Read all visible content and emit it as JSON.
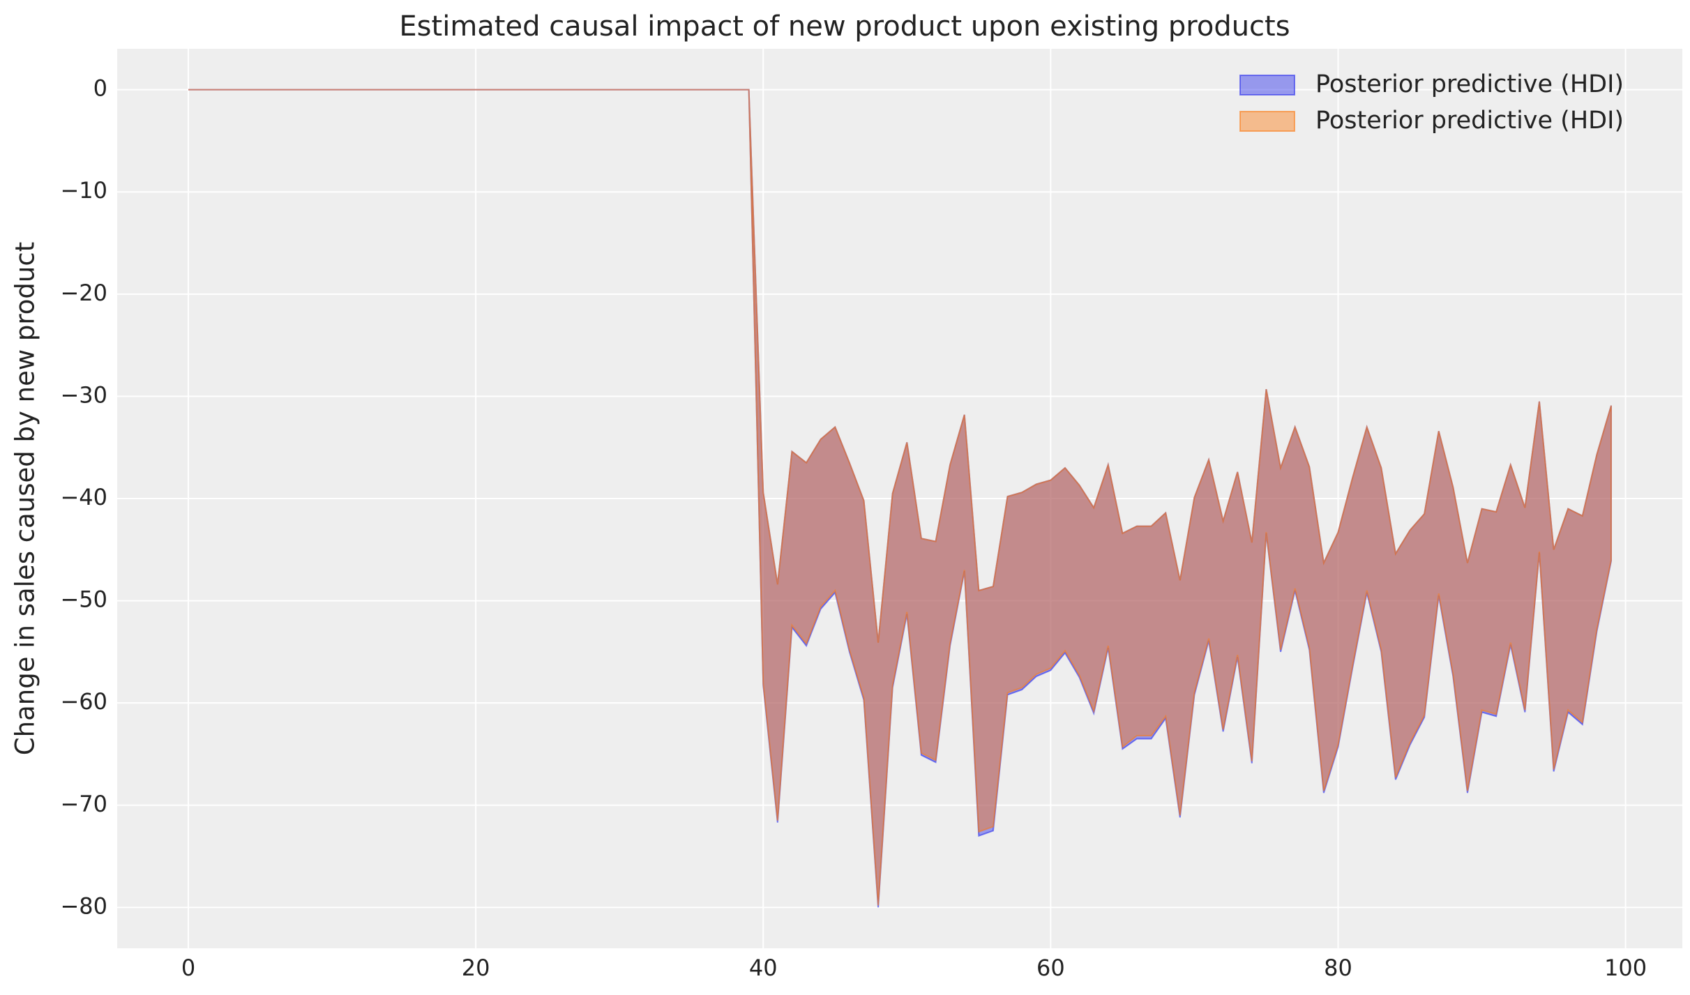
{
  "chart_data": {
    "type": "fill_between",
    "title": "Estimated causal impact of new product upon existing products",
    "y_label": "Change in sales caused by new product",
    "x": [
      0,
      1,
      2,
      3,
      4,
      5,
      6,
      7,
      8,
      9,
      10,
      11,
      12,
      13,
      14,
      15,
      16,
      17,
      18,
      19,
      20,
      21,
      22,
      23,
      24,
      25,
      26,
      27,
      28,
      29,
      30,
      31,
      32,
      33,
      34,
      35,
      36,
      37,
      38,
      39,
      40,
      41,
      42,
      43,
      44,
      45,
      46,
      47,
      48,
      49,
      50,
      51,
      52,
      53,
      54,
      55,
      56,
      57,
      58,
      59,
      60,
      61,
      62,
      63,
      64,
      65,
      66,
      67,
      68,
      69,
      70,
      71,
      72,
      73,
      74,
      75,
      76,
      77,
      78,
      79,
      80,
      81,
      82,
      83,
      84,
      85,
      86,
      87,
      88,
      89,
      90,
      91,
      92,
      93,
      94,
      95,
      96,
      97,
      98,
      99
    ],
    "series": [
      {
        "name": "Posterior predictive (HDI)",
        "color": "#2a2eec",
        "upper": [
          0,
          0,
          0,
          0,
          0,
          0,
          0,
          0,
          0,
          0,
          0,
          0,
          0,
          0,
          0,
          0,
          0,
          0,
          0,
          0,
          0,
          0,
          0,
          0,
          0,
          0,
          0,
          0,
          0,
          0,
          0,
          0,
          0,
          0,
          0,
          0,
          0,
          0,
          0,
          0,
          -39.4,
          -48.4,
          -35.4,
          -36.5,
          -34.2,
          -33.0,
          -36.5,
          -40.2,
          -54.1,
          -39.5,
          -34.5,
          -43.9,
          -44.2,
          -36.7,
          -31.8,
          -49.0,
          -48.6,
          -39.8,
          -39.4,
          -38.6,
          -38.2,
          -37.0,
          -38.7,
          -40.9,
          -36.7,
          -43.4,
          -42.7,
          -42.7,
          -41.4,
          -48.0,
          -39.9,
          -36.2,
          -42.2,
          -37.4,
          -44.3,
          -29.3,
          -37.0,
          -33.0,
          -36.9,
          -46.3,
          -43.3,
          -38.0,
          -33.0,
          -37.0,
          -45.4,
          -43.1,
          -41.5,
          -33.4,
          -38.9,
          -46.3,
          -41.0,
          -41.3,
          -36.7,
          -40.9,
          -30.5,
          -45.0,
          -41.0,
          -41.7,
          -35.7,
          -30.9
        ],
        "lower": [
          0,
          0,
          0,
          0,
          0,
          0,
          0,
          0,
          0,
          0,
          0,
          0,
          0,
          0,
          0,
          0,
          0,
          0,
          0,
          0,
          0,
          0,
          0,
          0,
          0,
          0,
          0,
          0,
          0,
          0,
          0,
          0,
          0,
          0,
          0,
          0,
          0,
          0,
          0,
          0,
          -58.3,
          -71.7,
          -52.6,
          -54.4,
          -50.8,
          -49.2,
          -55.0,
          -59.7,
          -80.0,
          -58.5,
          -51.3,
          -65.1,
          -65.8,
          -54.4,
          -47.1,
          -73.0,
          -72.5,
          -59.2,
          -58.7,
          -57.4,
          -56.8,
          -55.1,
          -57.5,
          -61.0,
          -54.6,
          -64.5,
          -63.5,
          -63.5,
          -61.5,
          -71.2,
          -59.2,
          -53.9,
          -62.8,
          -55.5,
          -65.9,
          -43.4,
          -55.0,
          -49.0,
          -54.8,
          -68.8,
          -64.3,
          -56.6,
          -49.2,
          -55.0,
          -67.5,
          -64.1,
          -61.4,
          -49.5,
          -57.4,
          -68.8,
          -60.9,
          -61.3,
          -54.3,
          -60.9,
          -45.3,
          -66.7,
          -60.9,
          -62.1,
          -53.0,
          -46.1
        ]
      },
      {
        "name": "Posterior predictive (HDI)",
        "color": "#fa7c17",
        "upper": [
          0,
          0,
          0,
          0,
          0,
          0,
          0,
          0,
          0,
          0,
          0,
          0,
          0,
          0,
          0,
          0,
          0,
          0,
          0,
          0,
          0,
          0,
          0,
          0,
          0,
          0,
          0,
          0,
          0,
          0,
          0,
          0,
          0,
          0,
          0,
          0,
          0,
          0,
          0,
          0,
          -39.4,
          -48.4,
          -35.4,
          -36.5,
          -34.2,
          -33.0,
          -36.5,
          -40.2,
          -54.1,
          -39.5,
          -34.5,
          -43.9,
          -44.2,
          -36.7,
          -31.8,
          -49.0,
          -48.6,
          -39.8,
          -39.4,
          -38.6,
          -38.2,
          -37.0,
          -38.7,
          -40.9,
          -36.7,
          -43.4,
          -42.7,
          -42.7,
          -41.4,
          -48.0,
          -39.9,
          -36.2,
          -42.2,
          -37.4,
          -44.3,
          -29.3,
          -37.0,
          -33.0,
          -36.9,
          -46.3,
          -43.3,
          -38.0,
          -33.0,
          -37.0,
          -45.4,
          -43.1,
          -41.5,
          -33.4,
          -38.9,
          -46.3,
          -41.0,
          -41.3,
          -36.7,
          -40.9,
          -30.5,
          -45.0,
          -41.0,
          -41.7,
          -35.7,
          -30.9
        ],
        "lower": [
          0,
          0,
          0,
          0,
          0,
          0,
          0,
          0,
          0,
          0,
          0,
          0,
          0,
          0,
          0,
          0,
          0,
          0,
          0,
          0,
          0,
          0,
          0,
          0,
          0,
          0,
          0,
          0,
          0,
          0,
          0,
          0,
          0,
          0,
          0,
          0,
          0,
          0,
          0,
          0,
          -58.1,
          -71.5,
          -52.4,
          -54.2,
          -50.6,
          -49.0,
          -54.8,
          -59.5,
          -79.8,
          -58.3,
          -51.1,
          -64.9,
          -65.6,
          -54.2,
          -47.0,
          -72.6,
          -72.1,
          -59.0,
          -58.5,
          -57.2,
          -56.6,
          -54.9,
          -57.3,
          -60.8,
          -54.4,
          -64.3,
          -63.2,
          -63.2,
          -61.3,
          -71.0,
          -59.0,
          -53.7,
          -62.6,
          -55.3,
          -65.7,
          -43.3,
          -54.8,
          -48.8,
          -54.6,
          -68.6,
          -64.1,
          -56.4,
          -49.0,
          -54.8,
          -67.3,
          -63.9,
          -61.2,
          -49.3,
          -57.2,
          -68.6,
          -60.7,
          -61.1,
          -54.1,
          -60.7,
          -45.2,
          -66.5,
          -60.7,
          -61.9,
          -52.8,
          -46.0
        ]
      }
    ],
    "fill_opacity": 0.45,
    "xlim": [
      -4.95,
      103.95
    ],
    "ylim": [
      -84,
      4
    ],
    "xticks": [
      0,
      20,
      40,
      60,
      80,
      100
    ],
    "yticks": [
      0,
      {
        "value": -10,
        "label": "−10"
      },
      {
        "value": -20,
        "label": "−20"
      },
      {
        "value": -30,
        "label": "−30"
      },
      {
        "value": -40,
        "label": "−40"
      },
      {
        "value": -50,
        "label": "−50"
      },
      {
        "value": -60,
        "label": "−60"
      },
      {
        "value": -70,
        "label": "−70"
      },
      {
        "value": -80,
        "label": "−80"
      }
    ],
    "grid": true,
    "legend": "upper right"
  }
}
